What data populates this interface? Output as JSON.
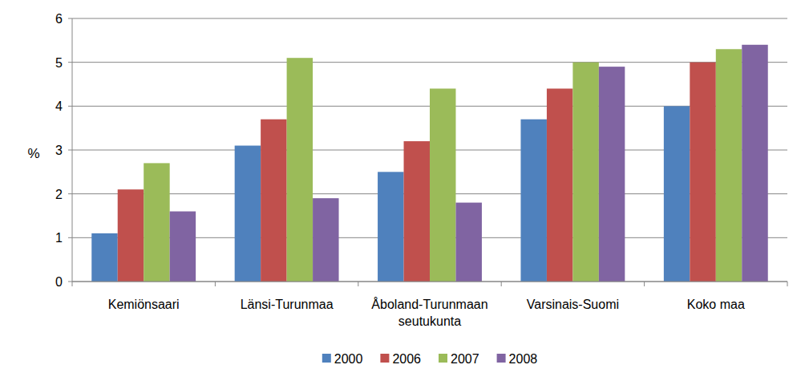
{
  "chart_data": {
    "type": "bar",
    "ylabel": "%",
    "categories": [
      "Kemiönsaari",
      "Länsi-Turunmaa",
      "Åboland-Turunmaan seutukunta",
      "Varsinais-Suomi",
      "Koko maa"
    ],
    "series": [
      {
        "name": "2000",
        "color": "#4F81BD",
        "values": [
          1.1,
          3.1,
          2.5,
          3.7,
          4.0
        ]
      },
      {
        "name": "2006",
        "color": "#C0504D",
        "values": [
          2.1,
          3.7,
          3.2,
          4.4,
          5.0
        ]
      },
      {
        "name": "2007",
        "color": "#9BBB59",
        "values": [
          2.7,
          5.1,
          4.4,
          5.0,
          5.3
        ]
      },
      {
        "name": "2008",
        "color": "#8064A2",
        "values": [
          1.6,
          1.9,
          1.8,
          4.9,
          5.4
        ]
      }
    ],
    "ylim": [
      0,
      6
    ],
    "yticks": [
      0,
      1,
      2,
      3,
      4,
      5,
      6
    ],
    "grid": true,
    "legend": "bottom"
  }
}
